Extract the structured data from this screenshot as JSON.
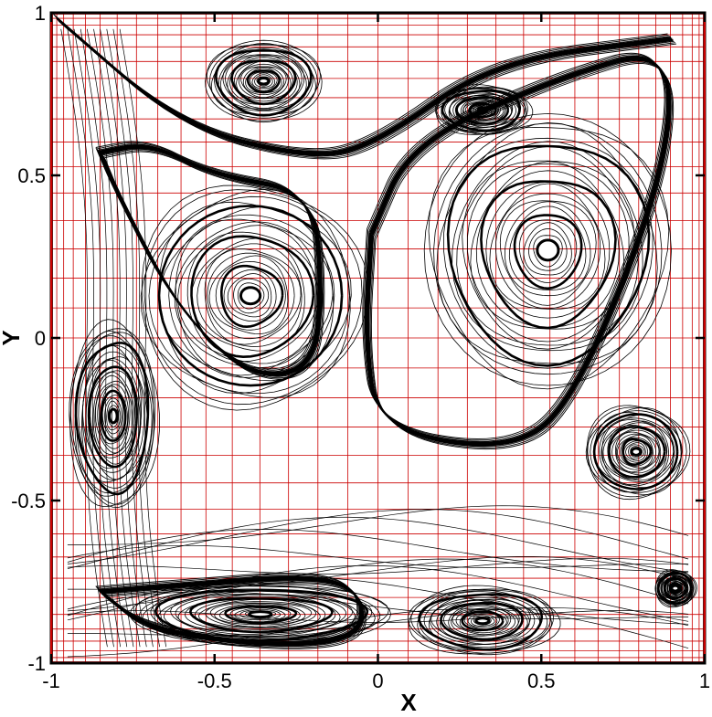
{
  "chart_data": {
    "type": "streamline",
    "title": "",
    "xlabel": "X",
    "ylabel": "Y",
    "xlim": [
      -1,
      1
    ],
    "ylim": [
      -1,
      1
    ],
    "xticks": [
      -1,
      -0.5,
      0,
      0.5,
      1
    ],
    "yticks": [
      -1,
      -0.5,
      0,
      0.5,
      1
    ],
    "x_tick_labels": [
      "-1",
      "-0.5",
      "0",
      "0.5",
      "1"
    ],
    "y_tick_labels": [
      "-1",
      "-0.5",
      "0",
      "0.5",
      "1"
    ],
    "grid": true,
    "grid_color": "#cc0000",
    "grid_note": "nonuniform mesh, clustered toward all four walls",
    "line_color": "#000000",
    "vortices": [
      {
        "name": "top-left-small",
        "x": -0.35,
        "y": 0.79,
        "rx": 0.17,
        "ry": 0.13
      },
      {
        "name": "top-right-small",
        "x": 0.32,
        "y": 0.7,
        "rx": 0.14,
        "ry": 0.08
      },
      {
        "name": "center-left",
        "x": -0.39,
        "y": 0.13,
        "rx": 0.33,
        "ry": 0.36
      },
      {
        "name": "center-right",
        "x": 0.52,
        "y": 0.27,
        "rx": 0.36,
        "ry": 0.44
      },
      {
        "name": "left-edge",
        "x": -0.81,
        "y": -0.24,
        "rx": 0.13,
        "ry": 0.3
      },
      {
        "name": "right-edge",
        "x": 0.79,
        "y": -0.35,
        "rx": 0.15,
        "ry": 0.15
      },
      {
        "name": "bottom-left",
        "x": -0.36,
        "y": -0.85,
        "rx": 0.38,
        "ry": 0.1
      },
      {
        "name": "bottom-center",
        "x": 0.32,
        "y": -0.87,
        "rx": 0.22,
        "ry": 0.11
      },
      {
        "name": "bottom-right-corner",
        "x": 0.91,
        "y": -0.77,
        "rx": 0.06,
        "ry": 0.06
      }
    ],
    "separatrices": [
      {
        "name": "left-lobe-boundary",
        "points": [
          [
            -0.85,
            0.57
          ],
          [
            -0.7,
            0.6
          ],
          [
            -0.5,
            0.5
          ],
          [
            -0.2,
            0.45
          ],
          [
            -0.17,
            0.15
          ],
          [
            -0.2,
            -0.1
          ],
          [
            -0.4,
            -0.12
          ],
          [
            -0.62,
            0.1
          ],
          [
            -0.8,
            0.45
          ],
          [
            -0.85,
            0.57
          ]
        ]
      },
      {
        "name": "right-lobe-boundary",
        "points": [
          [
            -0.02,
            0.32
          ],
          [
            0.1,
            0.6
          ],
          [
            0.55,
            0.8
          ],
          [
            0.9,
            0.9
          ],
          [
            0.88,
            0.5
          ],
          [
            0.6,
            -0.2
          ],
          [
            0.4,
            -0.35
          ],
          [
            0.0,
            -0.28
          ],
          [
            -0.04,
            0.0
          ],
          [
            -0.02,
            0.32
          ]
        ]
      },
      {
        "name": "top-band",
        "points": [
          [
            -0.98,
            0.98
          ],
          [
            -0.6,
            0.65
          ],
          [
            -0.2,
            0.55
          ],
          [
            0.0,
            0.6
          ],
          [
            0.35,
            0.85
          ],
          [
            0.9,
            0.92
          ]
        ]
      },
      {
        "name": "bottom-left-lobe",
        "points": [
          [
            -0.85,
            -0.78
          ],
          [
            -0.6,
            -0.76
          ],
          [
            -0.2,
            -0.73
          ],
          [
            -0.05,
            -0.78
          ],
          [
            -0.05,
            -0.92
          ],
          [
            -0.3,
            -0.95
          ],
          [
            -0.7,
            -0.9
          ],
          [
            -0.85,
            -0.78
          ]
        ]
      }
    ]
  }
}
